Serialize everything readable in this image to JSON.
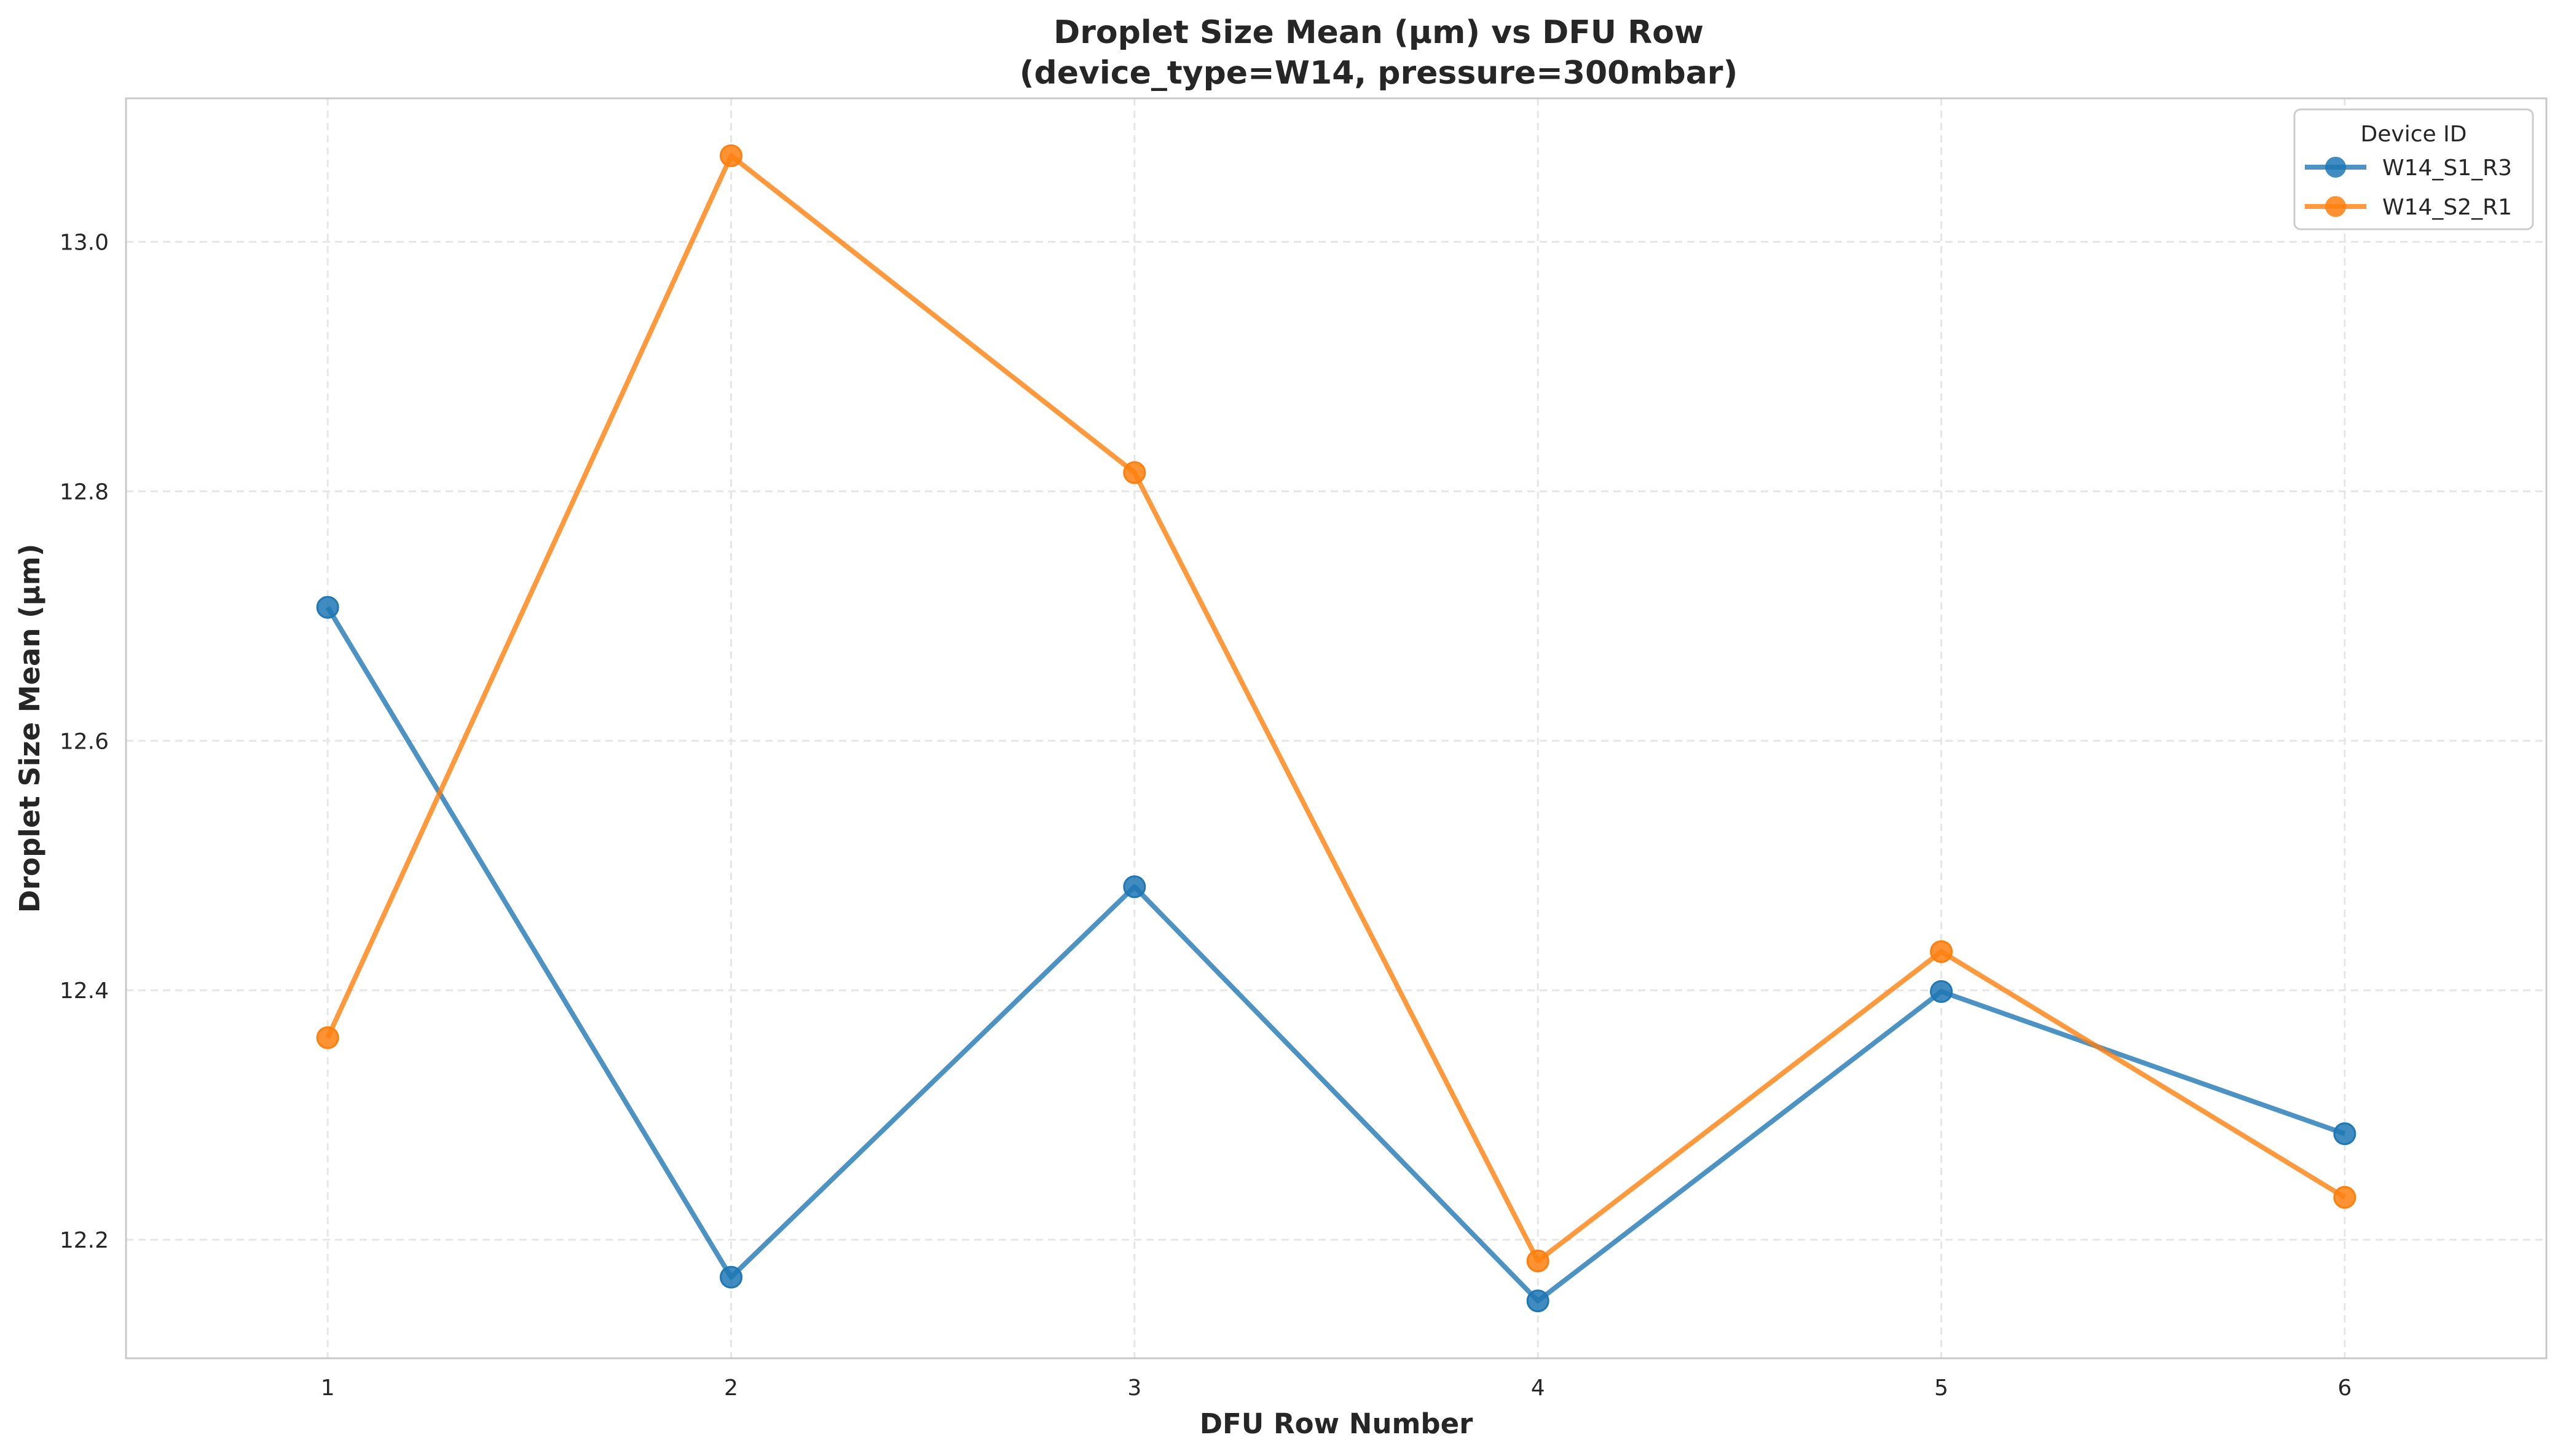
{
  "chart_data": {
    "type": "line",
    "title": "Droplet Size Mean (μm) vs DFU Row",
    "subtitle": "(device_type=W14, pressure=300mbar)",
    "xlabel": "DFU Row Number",
    "ylabel": "Droplet Size Mean (μm)",
    "x": [
      1,
      2,
      3,
      4,
      5,
      6
    ],
    "xlim": [
      0.5,
      6.5
    ],
    "ylim": [
      12.105,
      13.115
    ],
    "yticks": [
      12.2,
      12.4,
      12.6,
      12.8,
      13.0
    ],
    "ytick_labels": [
      "12.2",
      "12.4",
      "12.6",
      "12.8",
      "13.0"
    ],
    "xticks": [
      1,
      2,
      3,
      4,
      5,
      6
    ],
    "xtick_labels": [
      "1",
      "2",
      "3",
      "4",
      "5",
      "6"
    ],
    "grid": true,
    "legend": {
      "title": "Device ID",
      "placement": "top-right"
    },
    "series": [
      {
        "name": "W14_S1_R3",
        "color": "#1f77b4",
        "values": [
          12.707,
          12.17,
          12.483,
          12.151,
          12.399,
          12.285
        ]
      },
      {
        "name": "W14_S2_R1",
        "color": "#ff7f0e",
        "values": [
          12.362,
          13.069,
          12.815,
          12.183,
          12.431,
          12.234
        ]
      }
    ]
  }
}
